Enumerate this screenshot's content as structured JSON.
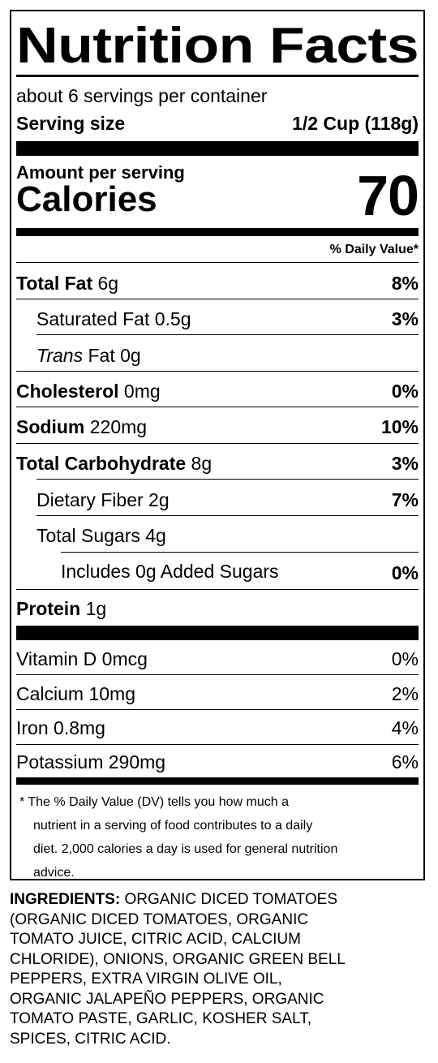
{
  "title": "Nutrition Facts",
  "servings_per_container": "about 6 servings per container",
  "serving_size_label": "Serving size",
  "serving_size_value": "1/2 Cup (118g)",
  "amount_per_serving": "Amount per serving",
  "calories_label": "Calories",
  "calories_value": "70",
  "daily_value_header": "% Daily Value*",
  "nutrients": {
    "total_fat": {
      "name": "Total Fat",
      "amount": "6g",
      "dv": "8%"
    },
    "saturated_fat": {
      "name": "Saturated Fat",
      "amount": "0.5g",
      "dv": "3%"
    },
    "trans_fat": {
      "name": "Trans",
      "name_suffix": "Fat",
      "amount": "0g"
    },
    "cholesterol": {
      "name": "Cholesterol",
      "amount": "0mg",
      "dv": "0%"
    },
    "sodium": {
      "name": "Sodium",
      "amount": "220mg",
      "dv": "10%"
    },
    "total_carbohydrate": {
      "name": "Total Carbohydrate",
      "amount": "8g",
      "dv": "3%"
    },
    "dietary_fiber": {
      "name": "Dietary Fiber",
      "amount": "2g",
      "dv": "7%"
    },
    "total_sugars": {
      "name": "Total Sugars",
      "amount": "4g"
    },
    "added_sugars": {
      "name": "Includes 0g Added Sugars",
      "dv": "0%"
    },
    "protein": {
      "name": "Protein",
      "amount": "1g"
    }
  },
  "vitamins": {
    "vitamin_d": {
      "label": "Vitamin D 0mcg",
      "dv": "0%"
    },
    "calcium": {
      "label": "Calcium 10mg",
      "dv": "2%"
    },
    "iron": {
      "label": "Iron 0.8mg",
      "dv": "4%"
    },
    "potassium": {
      "label": "Potassium 290mg",
      "dv": "6%"
    }
  },
  "footnote": {
    "line1": "* The % Daily Value (DV) tells you how much a",
    "line2": "nutrient in a serving of food contributes to a daily",
    "line3": "diet. 2,000 calories a day is used for general nutrition",
    "line4": "advice."
  },
  "ingredients": {
    "label": "INGREDIENTS:",
    "line1": "ORGANIC DICED TOMATOES",
    "line2": "(ORGANIC DICED TOMATOES, ORGANIC",
    "line3": "TOMATO JUICE, CITRIC ACID, CALCIUM",
    "line4": "CHLORIDE), ONIONS, ORGANIC GREEN BELL",
    "line5": "PEPPERS, EXTRA VIRGIN OLIVE OIL,",
    "line6": "ORGANIC JALAPEÑO PEPPERS, ORGANIC",
    "line7": "TOMATO PASTE, GARLIC, KOSHER SALT,",
    "line8": "SPICES, CITRIC ACID."
  }
}
